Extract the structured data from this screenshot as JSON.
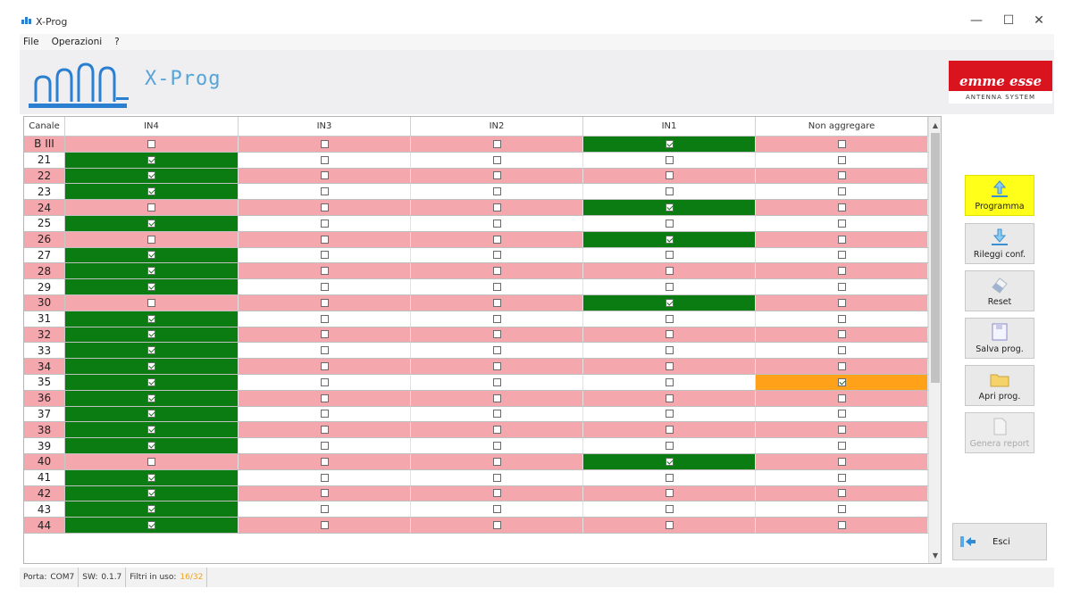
{
  "window": {
    "title": "X-Prog",
    "minimize": "—",
    "maximize": "☐",
    "close": "✕"
  },
  "menu": [
    "File",
    "Operazioni",
    "?"
  ],
  "header": {
    "app_name": "X-Prog",
    "brand_name": "emme esse",
    "brand_tagline": "ANTENNA SYSTEM"
  },
  "table": {
    "columns": [
      "Canale",
      "IN4",
      "IN3",
      "IN2",
      "IN1",
      "Non aggregare"
    ],
    "rows": [
      {
        "ch": "B III",
        "sel": 3
      },
      {
        "ch": "21",
        "sel": 0
      },
      {
        "ch": "22",
        "sel": 0
      },
      {
        "ch": "23",
        "sel": 0
      },
      {
        "ch": "24",
        "sel": 3
      },
      {
        "ch": "25",
        "sel": 0
      },
      {
        "ch": "26",
        "sel": 3
      },
      {
        "ch": "27",
        "sel": 0
      },
      {
        "ch": "28",
        "sel": 0
      },
      {
        "ch": "29",
        "sel": 0
      },
      {
        "ch": "30",
        "sel": 3
      },
      {
        "ch": "31",
        "sel": 0
      },
      {
        "ch": "32",
        "sel": 0
      },
      {
        "ch": "33",
        "sel": 0
      },
      {
        "ch": "34",
        "sel": 0
      },
      {
        "ch": "35",
        "sel": 0,
        "extra": 4
      },
      {
        "ch": "36",
        "sel": 0
      },
      {
        "ch": "37",
        "sel": 0
      },
      {
        "ch": "38",
        "sel": 0
      },
      {
        "ch": "39",
        "sel": 0
      },
      {
        "ch": "40",
        "sel": 3
      },
      {
        "ch": "41",
        "sel": 0
      },
      {
        "ch": "42",
        "sel": 0
      },
      {
        "ch": "43",
        "sel": 0
      },
      {
        "ch": "44",
        "sel": 0
      }
    ]
  },
  "buttons": {
    "program": "Programma",
    "reload": "Rileggi conf.",
    "reset": "Reset",
    "save": "Salva prog.",
    "open": "Apri prog.",
    "report": "Genera report",
    "exit": "Esci"
  },
  "status": {
    "port_label": "Porta:",
    "port": "COM7",
    "sw_label": "SW:",
    "sw": "0.1.7",
    "filters_label": "Filtri in uso:",
    "filters": "16/32"
  },
  "colors": {
    "pink_row": "#f4a8ae",
    "green_sel": "#0a7c12",
    "orange_sel": "#ffa21a",
    "yellow_btn": "#ffff1a",
    "brand_red": "#d9141e"
  },
  "icons": [
    "app-icon",
    "upload-arrow-icon",
    "download-arrow-icon",
    "eraser-icon",
    "floppy-icon",
    "folder-icon",
    "pdf-icon",
    "exit-arrow-icon"
  ]
}
